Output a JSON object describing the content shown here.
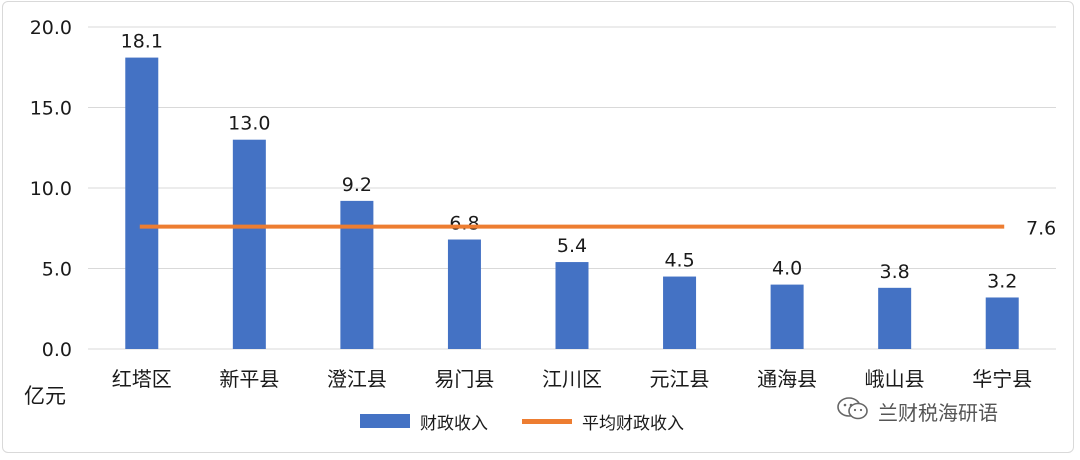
{
  "chart_data": {
    "type": "bar",
    "categories": [
      "红塔区",
      "新平县",
      "澄江县",
      "易门县",
      "江川区",
      "元江县",
      "通海县",
      "峨山县",
      "华宁县"
    ],
    "series": [
      {
        "name": "财政收入",
        "values": [
          18.1,
          13.0,
          9.2,
          6.8,
          5.4,
          4.5,
          4.0,
          3.8,
          3.2
        ],
        "color": "#4472c4"
      }
    ],
    "average_line": {
      "name": "平均财政收入",
      "value": 7.6,
      "label": "7.6",
      "color": "#ed7d31"
    },
    "data_labels": [
      "18.1",
      "13.0",
      "9.2",
      "6.8",
      "5.4",
      "4.5",
      "4.0",
      "3.8",
      "3.2"
    ],
    "ylabel": "亿元",
    "ylim": [
      0,
      20
    ],
    "yticks": [
      0,
      5,
      10,
      15,
      20
    ],
    "ytick_labels": [
      "0.0",
      "5.0",
      "10.0",
      "15.0",
      "20.0"
    ],
    "grid": true,
    "legend_position": "bottom"
  },
  "watermark": {
    "text": "兰财税海研语",
    "icon": "wechat-icon"
  }
}
